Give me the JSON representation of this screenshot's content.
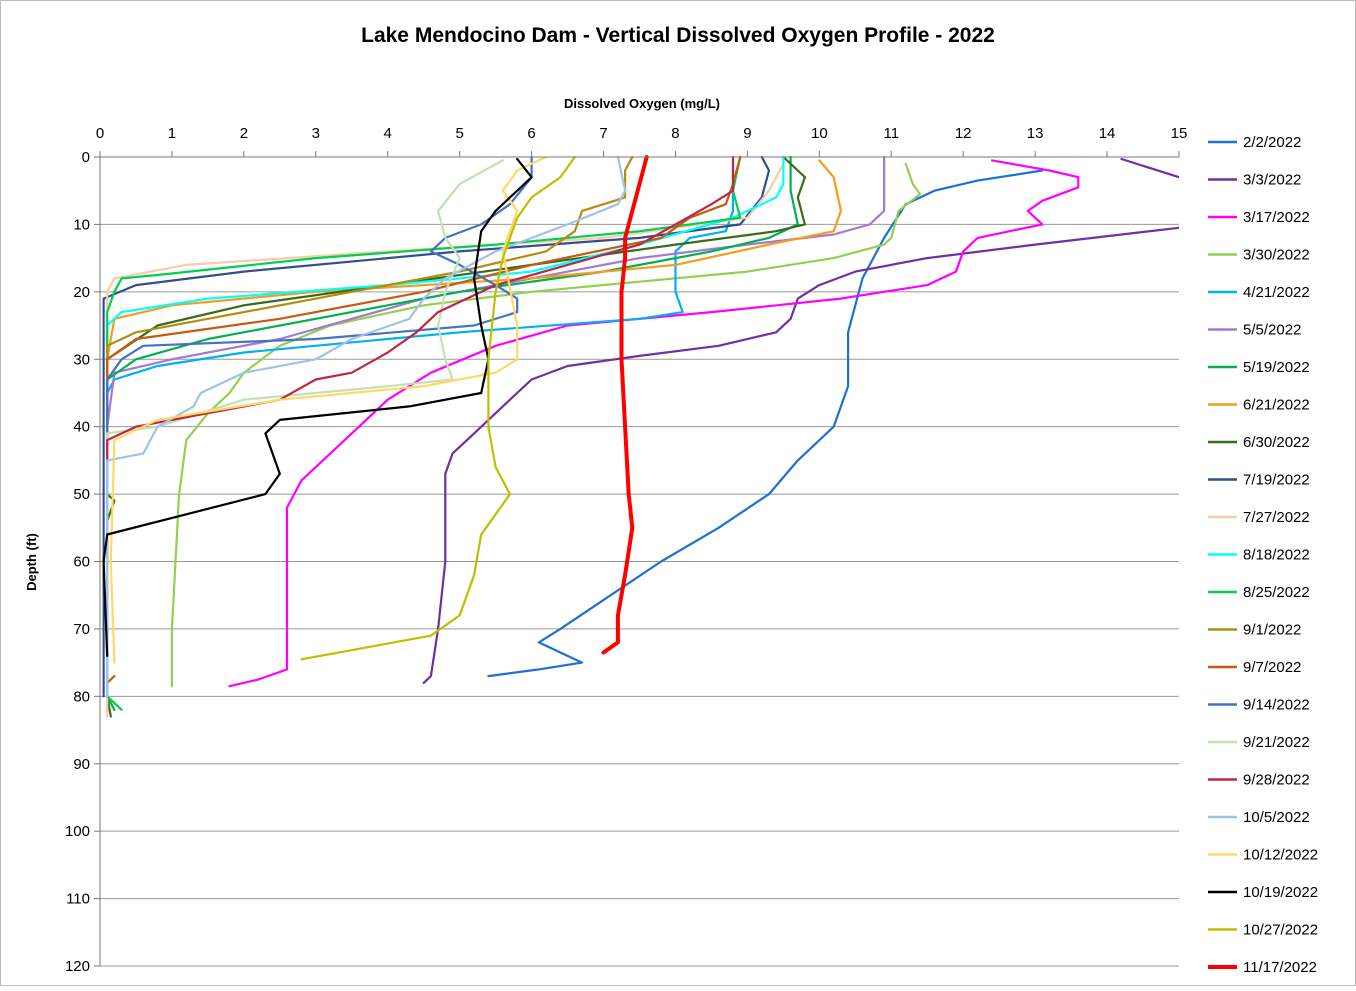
{
  "chart_data": {
    "type": "line",
    "title": "Lake Mendocino Dam - Vertical Dissolved Oxygen Profile - 2022",
    "x_label": "Dissolved Oxygen (mg/L)",
    "y_label": "Depth (ft)",
    "x_axis_position": "top",
    "y_inverted": true,
    "grid": true,
    "legend": "right",
    "xlim": [
      0,
      15
    ],
    "xticks": [
      0,
      1,
      2,
      3,
      4,
      5,
      6,
      7,
      8,
      9,
      10,
      11,
      12,
      13,
      14,
      15
    ],
    "ylim": [
      0,
      120
    ],
    "yticks": [
      0,
      10,
      20,
      30,
      40,
      50,
      60,
      70,
      80,
      90,
      100,
      110,
      120
    ],
    "series": [
      {
        "name": "2/2/2022",
        "color": "#1f6fd6",
        "x": [
          13.1,
          12.2,
          11.6,
          11.2,
          10.9,
          10.6,
          10.4,
          10.4,
          10.2,
          9.7,
          9.3,
          8.6,
          7.8,
          7.1,
          6.4,
          6.1,
          6.5,
          6.7,
          6.1,
          5.4
        ],
        "values": [
          2,
          3.5,
          5,
          7,
          12,
          18,
          26,
          34,
          40,
          45,
          50,
          55,
          60,
          65,
          70,
          72,
          74,
          75,
          76,
          77
        ]
      },
      {
        "name": "3/3/2022",
        "color": "#7030a0",
        "x": [
          14.2,
          15,
          15.4,
          15,
          13,
          11.5,
          10.5,
          10.0,
          9.7,
          9.6,
          9.4,
          8.6,
          7.5,
          6.5,
          6,
          5.6,
          5.2,
          4.9,
          4.8,
          4.8,
          4.7,
          4.6,
          4.5
        ],
        "values": [
          0.3,
          3,
          6,
          10.5,
          13,
          15,
          17,
          19,
          21,
          24,
          26,
          28,
          29.5,
          31,
          33,
          37,
          41,
          44,
          47,
          60,
          70,
          77,
          78
        ]
      },
      {
        "name": "3/17/2022",
        "color": "#ff00ff",
        "x": [
          12.4,
          13.2,
          13.6,
          13.6,
          13.1,
          12.9,
          13.1,
          12.2,
          12.0,
          11.9,
          11.5,
          10.3,
          8.5,
          6.5,
          5.5,
          4.6,
          4.0,
          3.6,
          3.2,
          2.8,
          2.6,
          2.6,
          2.6,
          2.2,
          1.8
        ],
        "values": [
          0.5,
          2,
          3,
          4.5,
          6.5,
          8,
          10,
          12,
          14,
          17,
          19,
          21,
          23,
          25,
          28,
          32,
          36,
          40,
          44,
          48,
          52,
          60,
          76,
          77.5,
          78.5
        ]
      },
      {
        "name": "3/30/2022",
        "color": "#92d050",
        "x": [
          11.2,
          11.3,
          11.4,
          11.1,
          11.0,
          10.9,
          10.2,
          9,
          7.5,
          6,
          4.5,
          3.2,
          2.5,
          2.0,
          1.8,
          1.5,
          1.2,
          1.1,
          1.05,
          1.0,
          1.0
        ],
        "values": [
          1,
          4,
          5.5,
          8,
          12,
          13,
          15,
          17,
          18.5,
          20,
          22,
          25,
          28,
          32,
          35,
          38,
          42,
          50,
          60,
          70,
          78.5
        ]
      },
      {
        "name": "4/21/2022",
        "color": "#00b0f0",
        "x": [
          8.8,
          8.8,
          8.7,
          8.2,
          8.0,
          8.0,
          8.0,
          8.1,
          7.5,
          5,
          2,
          0.8,
          0.2,
          0.1,
          0.1
        ],
        "values": [
          1,
          8,
          11,
          12,
          14,
          16,
          20,
          23,
          24,
          26,
          29,
          31,
          33,
          35,
          60
        ]
      },
      {
        "name": "5/5/2022",
        "color": "#a579d1",
        "x": [
          10.9,
          10.9,
          10.9,
          10.7,
          10.2,
          9,
          7.5,
          6,
          4.5,
          3.5,
          2.5,
          1,
          0.2,
          0.1,
          0.1
        ],
        "values": [
          0,
          5,
          8,
          10,
          11.5,
          13,
          15,
          18,
          21,
          24,
          27,
          30,
          32,
          40,
          60
        ]
      },
      {
        "name": "5/19/2022",
        "color": "#00b050",
        "x": [
          9.6,
          9.6,
          9.7,
          9.3,
          8.5,
          7,
          5,
          3,
          1.5,
          0.5,
          0.1,
          0.1,
          0.1,
          0.2
        ],
        "values": [
          0,
          5,
          10,
          12,
          14,
          17,
          20,
          24,
          27,
          30,
          33,
          60,
          80,
          82
        ]
      },
      {
        "name": "6/21/2022",
        "color": "#f59c1a",
        "x": [
          10.0,
          10.2,
          10.3,
          10.2,
          9.3,
          8,
          6,
          3,
          1,
          0.2,
          0.1,
          0.1
        ],
        "values": [
          0.5,
          3,
          8,
          11,
          13,
          16,
          18,
          20,
          22,
          24,
          30,
          78
        ]
      },
      {
        "name": "6/30/2022",
        "color": "#3a6b1a",
        "x": [
          9.5,
          9.8,
          9.7,
          9.8,
          9.4,
          8,
          6,
          4,
          2,
          0.8,
          0.1,
          0.1,
          0.2,
          0.1,
          0.1,
          0.15
        ],
        "values": [
          0,
          3,
          6,
          10,
          11,
          13,
          16,
          19,
          22,
          25,
          30,
          50,
          51,
          54,
          80,
          83
        ]
      },
      {
        "name": "7/19/2022",
        "color": "#2f4f8f",
        "x": [
          9.2,
          9.3,
          9.2,
          8.9,
          7.5,
          5,
          2,
          0.5,
          0.05,
          0.05,
          0.05
        ],
        "values": [
          0,
          2,
          6,
          10,
          12,
          14,
          17,
          19,
          21,
          30,
          80
        ]
      },
      {
        "name": "7/27/2022",
        "color": "#f8cbad",
        "x": [
          9.5,
          9.3,
          9,
          7,
          4,
          1.2,
          0.2,
          0.1,
          0.1
        ],
        "values": [
          1,
          5,
          9,
          12,
          14,
          16,
          18,
          20,
          83
        ]
      },
      {
        "name": "8/18/2022",
        "color": "#00ffff",
        "x": [
          9.5,
          9.5,
          9.4,
          8.8,
          7.5,
          6,
          4,
          1.5,
          0.3,
          0.1,
          0.1
        ],
        "values": [
          0,
          4,
          6,
          9,
          13,
          17,
          19,
          21,
          23,
          25,
          80
        ]
      },
      {
        "name": "8/25/2022",
        "color": "#00d050",
        "x": [
          8.9,
          8.8,
          8.9,
          7.5,
          5.5,
          3,
          0.8,
          0.3,
          0.2,
          0.1,
          0.1,
          0.3
        ],
        "values": [
          0,
          5,
          9,
          11,
          13,
          15,
          17.5,
          18,
          20,
          23,
          80,
          82
        ]
      },
      {
        "name": "9/1/2022",
        "color": "#b58c10",
        "x": [
          7.4,
          7.3,
          7.3,
          6.7,
          6.6,
          6.2,
          5,
          3.5,
          2,
          0.5,
          0.1,
          0.1
        ],
        "values": [
          0,
          2,
          6,
          8,
          11,
          14,
          17,
          20,
          23,
          26,
          28,
          78
        ]
      },
      {
        "name": "9/7/2022",
        "color": "#c55a11",
        "x": [
          8.9,
          8.8,
          8.7,
          8.2,
          7.8,
          6,
          4.5,
          2.5,
          0.5,
          0.1,
          0.1,
          0.2
        ],
        "values": [
          0,
          4,
          7,
          9,
          12,
          16,
          20,
          24,
          27,
          30,
          78,
          77
        ]
      },
      {
        "name": "9/14/2022",
        "color": "#4472c4",
        "x": [
          6.0,
          6.0,
          5.7,
          5.3,
          4.8,
          4.6,
          5,
          5.5,
          5.8,
          5.8,
          5.2,
          3,
          0.6,
          0.3,
          0.1,
          0.1
        ],
        "values": [
          0,
          3,
          7,
          10,
          12,
          14,
          16,
          19,
          21,
          23,
          25,
          27,
          28,
          30,
          33,
          80
        ]
      },
      {
        "name": "9/21/2022",
        "color": "#c5e0b4",
        "x": [
          5.6,
          5,
          4.7,
          4.8,
          5.0,
          4.8,
          4.7,
          4.8,
          4.9,
          4,
          2,
          0.8,
          0.1,
          0.1
        ],
        "values": [
          0.5,
          4,
          8,
          12,
          15,
          20,
          25,
          30,
          33,
          34,
          36,
          40,
          41,
          80
        ]
      },
      {
        "name": "9/28/2022",
        "color": "#be2743",
        "x": [
          8.8,
          8.8,
          8.5,
          8,
          7.5,
          6.5,
          5.5,
          4.7,
          4.4,
          4,
          3.5,
          3.0,
          2.5,
          1.5,
          0.5,
          0.1,
          0.1
        ],
        "values": [
          0,
          5,
          7,
          10,
          13,
          16,
          19,
          23,
          26,
          29,
          32,
          33,
          36,
          38,
          40,
          42,
          45
        ]
      },
      {
        "name": "10/5/2022",
        "color": "#9dc3e6",
        "x": [
          7.2,
          7.3,
          7.2,
          6.5,
          5.5,
          4.8,
          4.5,
          4.3,
          3.5,
          3,
          2,
          1.4,
          1.3,
          0.8,
          0.6,
          0.1,
          0.1
        ],
        "values": [
          0,
          5,
          7,
          10,
          14,
          18,
          21,
          24,
          27,
          30,
          32,
          35,
          37,
          40,
          44,
          45,
          80
        ]
      },
      {
        "name": "10/12/2022",
        "color": "#ffd966",
        "x": [
          6.2,
          5.8,
          5.6,
          5.8,
          5.6,
          5.8,
          5.8,
          5.5,
          4.5,
          2.5,
          0.8,
          0.2,
          0.15,
          0.2
        ],
        "values": [
          0,
          2,
          5,
          8,
          14,
          25,
          30,
          32,
          34,
          36,
          39,
          42,
          60,
          75
        ]
      },
      {
        "name": "10/19/2022",
        "color": "#000000",
        "x": [
          5.8,
          6,
          5.8,
          5.5,
          5.3,
          5.2,
          5.3,
          5.4,
          5.3,
          4.3,
          2.5,
          2.3,
          2.4,
          2.5,
          2.3,
          1.2,
          0.1,
          0.05,
          0.1
        ],
        "values": [
          0.3,
          3,
          5,
          8,
          11,
          18,
          25,
          30,
          35,
          37,
          39,
          41,
          44,
          47,
          50,
          53,
          56,
          60,
          74
        ]
      },
      {
        "name": "10/27/2022",
        "color": "#bfbf00",
        "x": [
          6.6,
          6.4,
          6.0,
          5.8,
          5.7,
          5.6,
          5.5,
          5.4,
          5.4,
          5.5,
          5.7,
          5.5,
          5.3,
          5.2,
          5.0,
          4.6,
          2.8
        ],
        "values": [
          0,
          3,
          6,
          9,
          12,
          15,
          20,
          30,
          40,
          46,
          50,
          53,
          56,
          62,
          68,
          71,
          74.5
        ]
      },
      {
        "name": "11/17/2022",
        "color": "#ff0000",
        "line_width": 4,
        "x": [
          7.6,
          7.5,
          7.4,
          7.3,
          7.3,
          7.25,
          7.25,
          7.3,
          7.35,
          7.4,
          7.3,
          7.2,
          7.2,
          7.0
        ],
        "values": [
          0,
          4,
          8,
          12,
          15,
          20,
          30,
          40,
          50,
          55,
          62,
          68,
          72,
          73.5
        ]
      }
    ]
  }
}
